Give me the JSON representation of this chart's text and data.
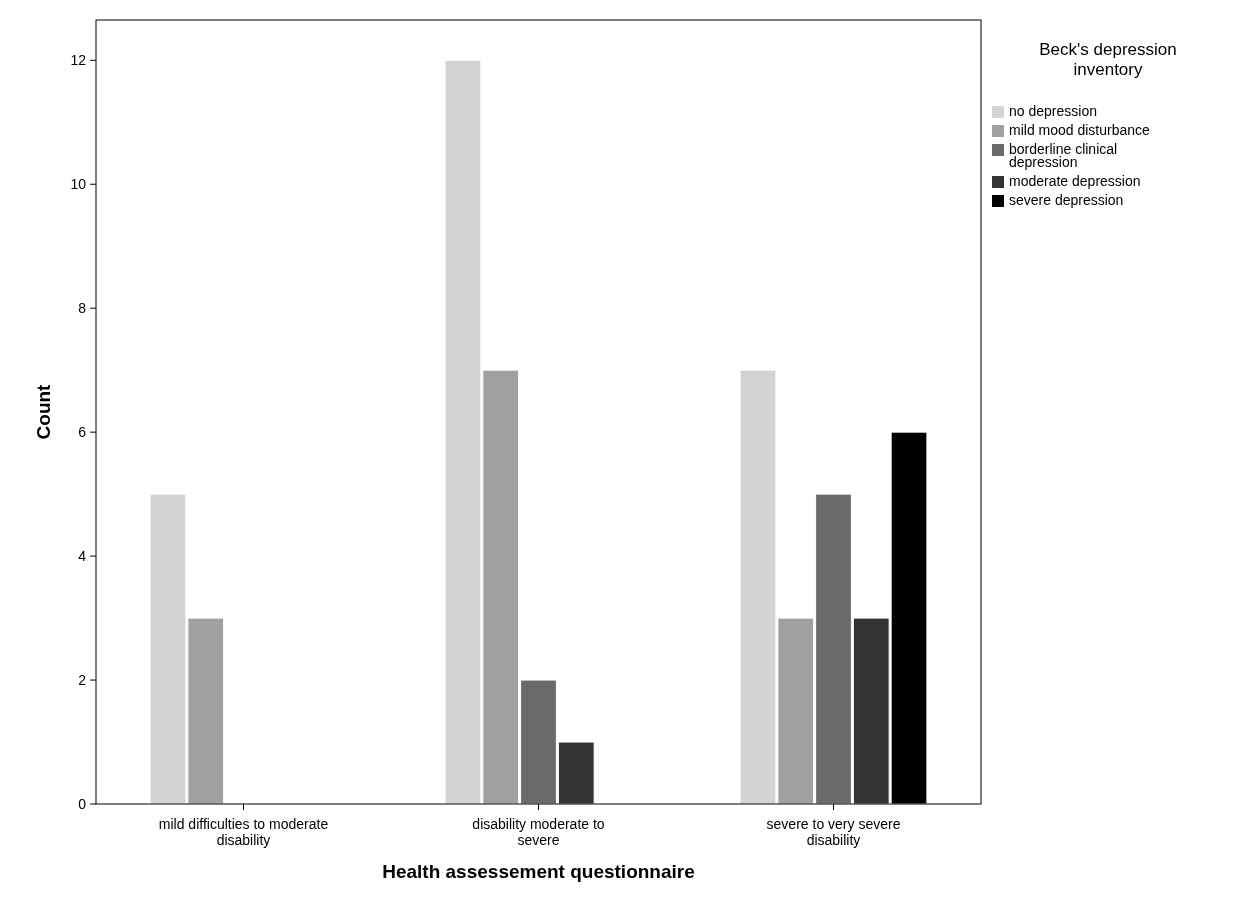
{
  "chart_data": {
    "type": "bar",
    "xlabel": "Health assessement questionnaire",
    "ylabel": "Count",
    "legend_title": "Beck's depression inventory",
    "categories": [
      "mild difficulties to moderate disability",
      "disability moderate to severe",
      "severe to very severe disability"
    ],
    "series": [
      {
        "name": "no depression",
        "color": "#d3d3d3",
        "values": [
          5,
          12,
          7
        ]
      },
      {
        "name": "mild mood disturbance",
        "color": "#a0a0a0",
        "values": [
          3,
          7,
          3
        ]
      },
      {
        "name": "borderline clinical depression",
        "color": "#6a6a6a",
        "values": [
          0,
          2,
          5
        ]
      },
      {
        "name": "moderate depression",
        "color": "#333333",
        "values": [
          0,
          1,
          3
        ]
      },
      {
        "name": "severe depression",
        "color": "#000000",
        "values": [
          0,
          0,
          6
        ]
      }
    ],
    "ylim": [
      0,
      12.65
    ],
    "yticks": [
      0,
      2,
      4,
      6,
      8,
      10,
      12
    ],
    "grid": false,
    "legend": "right"
  }
}
